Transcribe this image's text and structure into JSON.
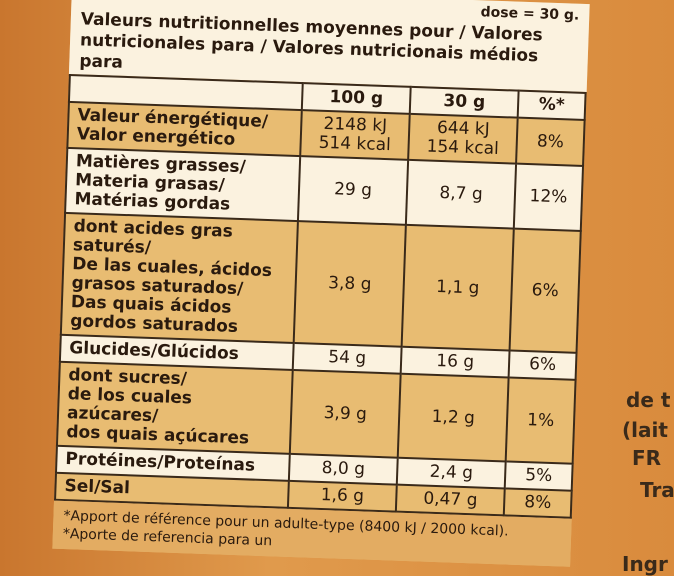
{
  "header": {
    "top_fragment": "dose = 30 g.",
    "lines": [
      "Valeurs nutritionnelles moyennes pour / Valores",
      "nutricionales para / Valores nutricionais médios para"
    ]
  },
  "table": {
    "columns": [
      "100 g",
      "30 g",
      "%*"
    ],
    "rows": [
      {
        "label": [
          "Valeur énergétique/",
          "Valor energético"
        ],
        "cells": [
          [
            "2148 kJ",
            "514 kcal"
          ],
          [
            "644 kJ",
            "154 kcal"
          ],
          [
            "8%"
          ]
        ]
      },
      {
        "label": [
          "Matières grasses/",
          "Materia grasas/",
          "Matérias gordas"
        ],
        "cells": [
          [
            "29 g"
          ],
          [
            "8,7 g"
          ],
          [
            "12%"
          ]
        ]
      },
      {
        "label": [
          "dont acides gras saturés/",
          "De las cuales, ácidos",
          "grasos saturados/",
          "Das quais ácidos",
          "gordos saturados"
        ],
        "cells": [
          [
            "3,8 g"
          ],
          [
            "1,1 g"
          ],
          [
            "6%"
          ]
        ]
      },
      {
        "label": [
          "Glucides/Glúcidos"
        ],
        "cells": [
          [
            "54 g"
          ],
          [
            "16 g"
          ],
          [
            "6%"
          ]
        ]
      },
      {
        "label": [
          "dont sucres/",
          "de los cuales azúcares/",
          "dos quais açúcares"
        ],
        "cells": [
          [
            "3,9 g"
          ],
          [
            "1,2 g"
          ],
          [
            "1%"
          ]
        ]
      },
      {
        "label": [
          "Protéines/Proteínas"
        ],
        "cells": [
          [
            "8,0 g"
          ],
          [
            "2,4 g"
          ],
          [
            "5%"
          ]
        ]
      },
      {
        "label": [
          "Sel/Sal"
        ],
        "cells": [
          [
            "1,6 g"
          ],
          [
            "0,47 g"
          ],
          [
            "8%"
          ]
        ]
      }
    ]
  },
  "footnotes": [
    "*Apport de référence pour un adulte-type (8400 kJ / 2000 kcal).",
    "*Aporte de referencia para un"
  ],
  "side": [
    "de t",
    "(lait",
    "FR",
    "Tra",
    "Ingr"
  ]
}
